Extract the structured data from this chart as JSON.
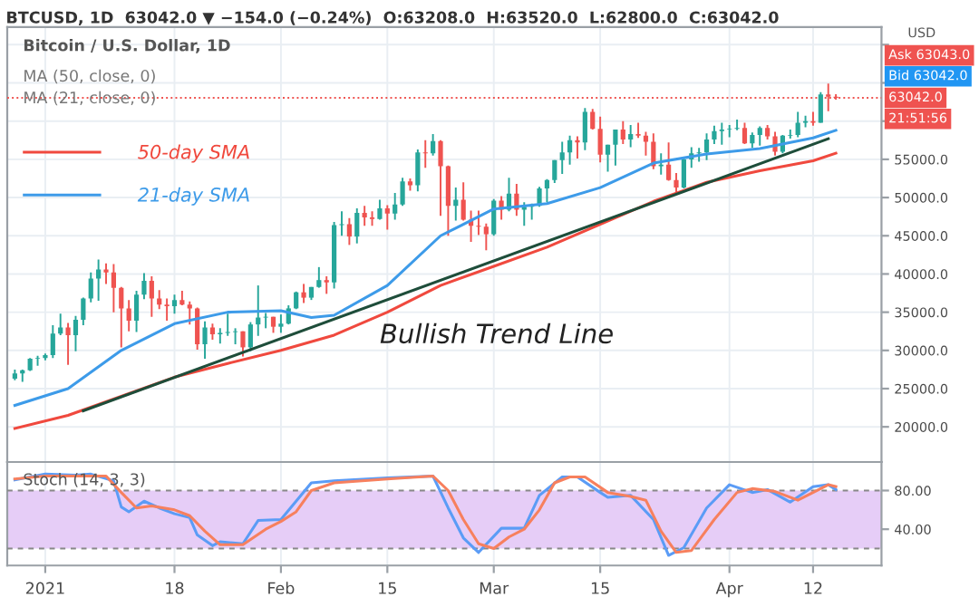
{
  "chart_data": [
    {
      "type": "candlestick",
      "title": "BTCUSD, 1D  63042.0 ▼ −154.0 (−0.24%)  O:63208.0  H:63520.0  L:62800.0  C:63042.0",
      "subtitle": "Bitcoin / U.S. Dollar, 1D",
      "x": [
        "2020-12-28",
        "2020-12-29",
        "2020-12-30",
        "2020-12-31",
        "2021-01-01",
        "2021-01-02",
        "2021-01-03",
        "2021-01-04",
        "2021-01-05",
        "2021-01-06",
        "2021-01-07",
        "2021-01-08",
        "2021-01-09",
        "2021-01-10",
        "2021-01-11",
        "2021-01-12",
        "2021-01-13",
        "2021-01-14",
        "2021-01-15",
        "2021-01-16",
        "2021-01-17",
        "2021-01-18",
        "2021-01-19",
        "2021-01-20",
        "2021-01-21",
        "2021-01-22",
        "2021-01-23",
        "2021-01-24",
        "2021-01-25",
        "2021-01-26",
        "2021-01-27",
        "2021-01-28",
        "2021-01-29",
        "2021-01-30",
        "2021-01-31",
        "2021-02-01",
        "2021-02-02",
        "2021-02-03",
        "2021-02-04",
        "2021-02-05",
        "2021-02-06",
        "2021-02-07",
        "2021-02-08",
        "2021-02-09",
        "2021-02-10",
        "2021-02-11",
        "2021-02-12",
        "2021-02-13",
        "2021-02-14",
        "2021-02-15",
        "2021-02-16",
        "2021-02-17",
        "2021-02-18",
        "2021-02-19",
        "2021-02-20",
        "2021-02-21",
        "2021-02-22",
        "2021-02-23",
        "2021-02-24",
        "2021-02-25",
        "2021-02-26",
        "2021-02-27",
        "2021-02-28",
        "2021-03-01",
        "2021-03-02",
        "2021-03-03",
        "2021-03-04",
        "2021-03-05",
        "2021-03-06",
        "2021-03-07",
        "2021-03-08",
        "2021-03-09",
        "2021-03-10",
        "2021-03-11",
        "2021-03-12",
        "2021-03-13",
        "2021-03-14",
        "2021-03-15",
        "2021-03-16",
        "2021-03-17",
        "2021-03-18",
        "2021-03-19",
        "2021-03-20",
        "2021-03-21",
        "2021-03-22",
        "2021-03-23",
        "2021-03-24",
        "2021-03-25",
        "2021-03-26",
        "2021-03-27",
        "2021-03-28",
        "2021-03-29",
        "2021-03-30",
        "2021-03-31",
        "2021-04-01",
        "2021-04-02",
        "2021-04-03",
        "2021-04-04",
        "2021-04-05",
        "2021-04-06",
        "2021-04-07",
        "2021-04-08",
        "2021-04-09",
        "2021-04-10",
        "2021-04-11",
        "2021-04-12",
        "2021-04-13",
        "2021-04-14",
        "2021-04-15"
      ],
      "ohlc": [
        [
          26300,
          27500,
          26100,
          27000
        ],
        [
          27000,
          27500,
          25900,
          27400
        ],
        [
          27400,
          29000,
          27300,
          28900
        ],
        [
          28900,
          29300,
          28000,
          29000
        ],
        [
          29000,
          29600,
          28700,
          29400
        ],
        [
          29400,
          33300,
          29000,
          32200
        ],
        [
          32200,
          34800,
          32000,
          33000
        ],
        [
          33000,
          33600,
          28100,
          32000
        ],
        [
          32000,
          34500,
          29900,
          34000
        ],
        [
          34000,
          36900,
          33300,
          36800
        ],
        [
          36800,
          40200,
          36300,
          39400
        ],
        [
          39400,
          41900,
          36500,
          40600
        ],
        [
          40600,
          41400,
          38700,
          40200
        ],
        [
          40200,
          41300,
          35000,
          38200
        ],
        [
          38200,
          38300,
          30400,
          35500
        ],
        [
          35500,
          36600,
          32500,
          33900
        ],
        [
          33900,
          37800,
          32400,
          37300
        ],
        [
          37300,
          40100,
          36700,
          39100
        ],
        [
          39100,
          39700,
          34400,
          36800
        ],
        [
          36800,
          37900,
          35400,
          36000
        ],
        [
          36000,
          36800,
          33900,
          35800
        ],
        [
          35800,
          37300,
          34800,
          36600
        ],
        [
          36600,
          37800,
          35900,
          36000
        ],
        [
          36000,
          36400,
          33400,
          35500
        ],
        [
          35500,
          35600,
          30100,
          30800
        ],
        [
          30800,
          33800,
          28900,
          33000
        ],
        [
          33000,
          33500,
          31400,
          32100
        ],
        [
          32100,
          32900,
          30900,
          32300
        ],
        [
          32300,
          34800,
          31900,
          32400
        ],
        [
          32400,
          32900,
          30800,
          32500
        ],
        [
          32500,
          32500,
          29200,
          30400
        ],
        [
          30400,
          33700,
          29900,
          33400
        ],
        [
          33400,
          38500,
          31900,
          34300
        ],
        [
          34300,
          34900,
          32900,
          34400
        ],
        [
          34400,
          34400,
          32300,
          33100
        ],
        [
          33100,
          34700,
          32300,
          33500
        ],
        [
          33500,
          35900,
          33400,
          35500
        ],
        [
          35500,
          37700,
          35400,
          37600
        ],
        [
          37600,
          38700,
          36200,
          36900
        ],
        [
          36900,
          38300,
          36600,
          38300
        ],
        [
          38300,
          40900,
          38200,
          39200
        ],
        [
          39200,
          39700,
          37400,
          38900
        ],
        [
          38900,
          46800,
          38100,
          46400
        ],
        [
          46400,
          48200,
          45000,
          46500
        ],
        [
          46500,
          47300,
          43800,
          44900
        ],
        [
          44900,
          48600,
          44000,
          48000
        ],
        [
          48000,
          48900,
          46300,
          47400
        ],
        [
          47400,
          48200,
          46300,
          47200
        ],
        [
          47200,
          49700,
          47100,
          48600
        ],
        [
          48600,
          49000,
          45800,
          47900
        ],
        [
          47900,
          50600,
          47100,
          49100
        ],
        [
          49100,
          52600,
          48900,
          52100
        ],
        [
          52100,
          52500,
          50900,
          51600
        ],
        [
          51600,
          56300,
          50800,
          55900
        ],
        [
          55900,
          57500,
          53900,
          55800
        ],
        [
          55800,
          58300,
          55500,
          57400
        ],
        [
          57400,
          57500,
          47600,
          54100
        ],
        [
          54100,
          54200,
          45000,
          48900
        ],
        [
          48900,
          51300,
          47000,
          49700
        ],
        [
          49700,
          52000,
          47000,
          47100
        ],
        [
          47100,
          48300,
          44200,
          46300
        ],
        [
          46300,
          48300,
          45100,
          46200
        ],
        [
          46200,
          46600,
          43100,
          45200
        ],
        [
          45200,
          49800,
          45000,
          49600
        ],
        [
          49600,
          50200,
          47100,
          48400
        ],
        [
          48400,
          52600,
          48200,
          50500
        ],
        [
          50500,
          51800,
          47600,
          48400
        ],
        [
          48400,
          49400,
          46300,
          48800
        ],
        [
          48800,
          49200,
          47100,
          48900
        ],
        [
          48900,
          51400,
          48800,
          51200
        ],
        [
          51200,
          52400,
          49400,
          52300
        ],
        [
          52300,
          54900,
          51900,
          54900
        ],
        [
          54900,
          57300,
          53100,
          55900
        ],
        [
          55900,
          58100,
          54300,
          57500
        ],
        [
          57500,
          58000,
          55100,
          57200
        ],
        [
          57200,
          61700,
          56200,
          61200
        ],
        [
          61200,
          61600,
          58900,
          59000
        ],
        [
          59000,
          60600,
          54600,
          55600
        ],
        [
          55600,
          56900,
          53400,
          56900
        ],
        [
          56900,
          58900,
          54200,
          58900
        ],
        [
          58900,
          60000,
          57000,
          57600
        ],
        [
          57600,
          59500,
          56600,
          58300
        ],
        [
          58300,
          59800,
          57800,
          58100
        ],
        [
          58100,
          58600,
          55500,
          57300
        ],
        [
          57300,
          58400,
          53700,
          54100
        ],
        [
          54100,
          55800,
          53000,
          54300
        ],
        [
          54300,
          57200,
          52200,
          52300
        ],
        [
          52300,
          53200,
          50400,
          51300
        ],
        [
          51300,
          55100,
          51200,
          55000
        ],
        [
          55000,
          56600,
          53900,
          55800
        ],
        [
          55800,
          56500,
          54700,
          55900
        ],
        [
          55900,
          58400,
          54900,
          57600
        ],
        [
          57600,
          59400,
          57000,
          58700
        ],
        [
          58700,
          59800,
          56900,
          58900
        ],
        [
          58900,
          59500,
          57900,
          59000
        ],
        [
          59000,
          60200,
          58800,
          59100
        ],
        [
          59100,
          59800,
          57000,
          57100
        ],
        [
          57100,
          58500,
          56500,
          58200
        ],
        [
          58200,
          59300,
          56800,
          59100
        ],
        [
          59100,
          59500,
          57600,
          58000
        ],
        [
          58000,
          58600,
          55500,
          56000
        ],
        [
          56000,
          58200,
          55800,
          58100
        ],
        [
          58100,
          58900,
          57700,
          58200
        ],
        [
          58200,
          61200,
          57900,
          59800
        ],
        [
          59800,
          60700,
          59200,
          60000
        ],
        [
          60000,
          61200,
          59400,
          59800
        ],
        [
          59800,
          63800,
          59800,
          63500
        ],
        [
          63500,
          64900,
          61300,
          63208
        ],
        [
          63208,
          63520,
          62800,
          63042
        ]
      ],
      "colors": [
        "#26a69a",
        "#26a69a",
        "#26a69a",
        "#26a69a",
        "#26a69a",
        "#26a69a",
        "#26a69a",
        "#ef5350",
        "#26a69a",
        "#26a69a",
        "#26a69a",
        "#26a69a",
        "#ef5350",
        "#ef5350",
        "#ef5350",
        "#ef5350",
        "#26a69a",
        "#26a69a",
        "#ef5350",
        "#ef5350",
        "#ef5350",
        "#26a69a",
        "#ef5350",
        "#ef5350",
        "#ef5350",
        "#26a69a",
        "#ef5350",
        "#26a69a",
        "#26a69a",
        "#26a69a",
        "#ef5350",
        "#26a69a",
        "#26a69a",
        "#26a69a",
        "#ef5350",
        "#26a69a",
        "#26a69a",
        "#26a69a",
        "#ef5350",
        "#26a69a",
        "#26a69a",
        "#ef5350",
        "#26a69a",
        "#26a69a",
        "#ef5350",
        "#26a69a",
        "#ef5350",
        "#ef5350",
        "#26a69a",
        "#ef5350",
        "#26a69a",
        "#26a69a",
        "#ef5350",
        "#26a69a",
        "#ef5350",
        "#26a69a",
        "#ef5350",
        "#ef5350",
        "#26a69a",
        "#ef5350",
        "#ef5350",
        "#ef5350",
        "#ef5350",
        "#26a69a",
        "#ef5350",
        "#26a69a",
        "#ef5350",
        "#26a69a",
        "#26a69a",
        "#26a69a",
        "#26a69a",
        "#26a69a",
        "#26a69a",
        "#26a69a",
        "#ef5350",
        "#26a69a",
        "#ef5350",
        "#ef5350",
        "#26a69a",
        "#26a69a",
        "#ef5350",
        "#26a69a",
        "#ef5350",
        "#ef5350",
        "#ef5350",
        "#26a69a",
        "#ef5350",
        "#ef5350",
        "#26a69a",
        "#26a69a",
        "#26a69a",
        "#26a69a",
        "#26a69a",
        "#26a69a",
        "#26a69a",
        "#26a69a",
        "#ef5350",
        "#26a69a",
        "#26a69a",
        "#ef5350",
        "#ef5350",
        "#26a69a",
        "#26a69a",
        "#26a69a",
        "#26a69a",
        "#ef5350",
        "#26a69a",
        "#ef5350",
        "#ef5350"
      ],
      "series": [
        {
          "name": "50-day SMA",
          "type": "line",
          "color": "#f0493e",
          "x": [
            "2020-12-28",
            "2021-01-04",
            "2021-01-11",
            "2021-01-18",
            "2021-01-25",
            "2021-02-01",
            "2021-02-08",
            "2021-02-15",
            "2021-02-22",
            "2021-03-01",
            "2021-03-08",
            "2021-03-15",
            "2021-03-22",
            "2021-03-29",
            "2021-04-05",
            "2021-04-12",
            "2021-04-15"
          ],
          "values": [
            19800,
            21500,
            24000,
            26500,
            28300,
            30000,
            32000,
            35000,
            38500,
            41000,
            43500,
            46500,
            49500,
            52000,
            53500,
            54800,
            55800
          ]
        },
        {
          "name": "21-day SMA",
          "type": "line",
          "color": "#3d9be9",
          "x": [
            "2020-12-28",
            "2021-01-04",
            "2021-01-11",
            "2021-01-18",
            "2021-01-25",
            "2021-02-01",
            "2021-02-05",
            "2021-02-08",
            "2021-02-15",
            "2021-02-22",
            "2021-03-01",
            "2021-03-08",
            "2021-03-15",
            "2021-03-22",
            "2021-03-29",
            "2021-04-05",
            "2021-04-12",
            "2021-04-15"
          ],
          "values": [
            22800,
            25000,
            30000,
            33500,
            35000,
            35200,
            34300,
            34600,
            38500,
            45000,
            48500,
            49200,
            51300,
            54500,
            55700,
            56400,
            57800,
            58800
          ]
        },
        {
          "type": "line",
          "color": "#1e4d3a",
          "x": [
            "2021-01-06",
            "2021-04-14"
          ],
          "values": [
            22100,
            57700
          ]
        }
      ],
      "xlim": [
        "2020-12-27",
        "2021-04-21"
      ],
      "xticks": [
        {
          "value": "2021-01-01",
          "label": null
        },
        {
          "value": "2021-01-18",
          "label": null
        },
        {
          "value": "2021-02-01",
          "label": null
        },
        {
          "value": "2021-02-15",
          "label": null
        },
        {
          "value": "2021-03-01",
          "label": null
        },
        {
          "value": "2021-03-15",
          "label": null
        },
        {
          "value": "2021-04-01",
          "label": null
        },
        {
          "value": "2021-04-12",
          "label": null
        }
      ],
      "ylim": [
        15400,
        72300
      ],
      "yticks": [
        {
          "value": 20000,
          "label": "20000.0"
        },
        {
          "value": 25000,
          "label": "25000.0"
        },
        {
          "value": 30000,
          "label": "30000.0"
        },
        {
          "value": 35000,
          "label": "35000.0"
        },
        {
          "value": 40000,
          "label": "40000.0"
        },
        {
          "value": 45000,
          "label": "45000.0"
        },
        {
          "value": 50000,
          "label": "50000.0"
        },
        {
          "value": 55000,
          "label": "55000.0"
        },
        {
          "value": 60000,
          "label": null
        },
        {
          "value": 65000,
          "label": null
        },
        {
          "value": 70000,
          "label": null
        }
      ],
      "tick_labels": "y",
      "grid": true,
      "legend": "left",
      "ref_lines": [
        {
          "axis": "y",
          "value": 63042,
          "label": "63042.0",
          "color": "#ef5350",
          "line_style": "dotted"
        }
      ],
      "annotations": [
        "MA (50, close, 0)",
        "MA (21, close, 0)",
        "Ask 63043.0",
        "Bid 63042.0",
        "21:51:56",
        "USD",
        "Bullish Trend Line"
      ]
    },
    {
      "type": "line",
      "title": "Stoch (14, 3, 3)",
      "series": [
        {
          "color": "#5b9cf6",
          "x": [
            "2020-12-28",
            "2021-01-01",
            "2021-01-05",
            "2021-01-07",
            "2021-01-10",
            "2021-01-11",
            "2021-01-12",
            "2021-01-14",
            "2021-01-16",
            "2021-01-18",
            "2021-01-20",
            "2021-01-21",
            "2021-01-23",
            "2021-01-24",
            "2021-01-27",
            "2021-01-29",
            "2021-02-01",
            "2021-02-03",
            "2021-02-05",
            "2021-02-08",
            "2021-02-15",
            "2021-02-21",
            "2021-02-23",
            "2021-02-25",
            "2021-02-27",
            "2021-03-02",
            "2021-03-05",
            "2021-03-07",
            "2021-03-10",
            "2021-03-12",
            "2021-03-15",
            "2021-03-16",
            "2021-03-19",
            "2021-03-22",
            "2021-03-24",
            "2021-03-26",
            "2021-03-29",
            "2021-04-01",
            "2021-04-04",
            "2021-04-06",
            "2021-04-09",
            "2021-04-12",
            "2021-04-14",
            "2021-04-15"
          ],
          "values": [
            91,
            97,
            96,
            97,
            90,
            63,
            58,
            69,
            62,
            56,
            52,
            34,
            23,
            27,
            25,
            49,
            50,
            69,
            88,
            90,
            93,
            95,
            62,
            31,
            16,
            41,
            41,
            75,
            94,
            94,
            78,
            73,
            75,
            50,
            13,
            21,
            62,
            86,
            78,
            81,
            68,
            84,
            86,
            81
          ]
        },
        {
          "color": "#f7805e",
          "x": [
            "2020-12-28",
            "2021-01-01",
            "2021-01-05",
            "2021-01-09",
            "2021-01-11",
            "2021-01-13",
            "2021-01-15",
            "2021-01-18",
            "2021-01-20",
            "2021-01-22",
            "2021-01-24",
            "2021-01-27",
            "2021-01-30",
            "2021-02-01",
            "2021-02-03",
            "2021-02-05",
            "2021-02-08",
            "2021-02-15",
            "2021-02-21",
            "2021-02-23",
            "2021-02-25",
            "2021-02-27",
            "2021-03-01",
            "2021-03-03",
            "2021-03-05",
            "2021-03-07",
            "2021-03-09",
            "2021-03-11",
            "2021-03-13",
            "2021-03-16",
            "2021-03-19",
            "2021-03-21",
            "2021-03-23",
            "2021-03-25",
            "2021-03-27",
            "2021-03-30",
            "2021-04-02",
            "2021-04-04",
            "2021-04-07",
            "2021-04-10",
            "2021-04-12",
            "2021-04-14",
            "2021-04-15"
          ],
          "values": [
            92,
            95,
            95,
            95,
            78,
            62,
            64,
            60,
            54,
            38,
            24,
            24,
            40,
            48,
            58,
            80,
            88,
            92,
            95,
            80,
            50,
            25,
            20,
            32,
            40,
            60,
            88,
            94,
            94,
            78,
            74,
            70,
            38,
            16,
            18,
            50,
            78,
            82,
            79,
            70,
            78,
            86,
            84
          ]
        }
      ],
      "bands": [
        {
          "axis": "y",
          "from": 20,
          "to": 80,
          "color": "#e6cdf7"
        }
      ],
      "ref_lines": [
        {
          "axis": "y",
          "value": 20,
          "color": "#888888",
          "line_style": "dashed"
        },
        {
          "axis": "y",
          "value": 80,
          "color": "#888888",
          "line_style": "dashed"
        }
      ],
      "xlim": [
        "2020-12-27",
        "2021-04-21"
      ],
      "xticks": [
        {
          "value": "2021-01-01",
          "label": "2021"
        },
        {
          "value": "2021-01-18",
          "label": "18"
        },
        {
          "value": "2021-02-01",
          "label": "Feb"
        },
        {
          "value": "2021-02-15",
          "label": "15"
        },
        {
          "value": "2021-03-01",
          "label": "Mar"
        },
        {
          "value": "2021-03-15",
          "label": "15"
        },
        {
          "value": "2021-04-01",
          "label": "Apr"
        },
        {
          "value": "2021-04-12",
          "label": "12"
        }
      ],
      "ylim": [
        2.5,
        109.5
      ],
      "yticks": [
        {
          "value": 40,
          "label": "40.00"
        },
        {
          "value": 80,
          "label": "80.00"
        }
      ],
      "grid": "x"
    }
  ]
}
